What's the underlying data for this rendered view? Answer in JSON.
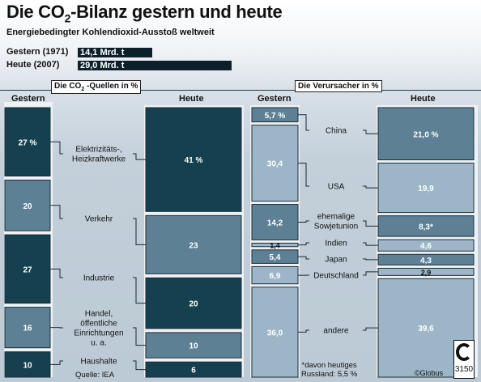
{
  "header": {
    "title_pre": "Die CO",
    "title_sub": "2",
    "title_post": "-Bilanz gestern und heute",
    "subtitle": "Energiebedingter Kohlendioxid-Ausstoß weltweit"
  },
  "totals": [
    {
      "label": "Gestern (1971)",
      "display": "14,1 Mrd. t",
      "value": 14.1
    },
    {
      "label": "Heute (2007)",
      "display": "29,0 Mrd. t",
      "value": 29.0
    }
  ],
  "colors": {
    "dark": "#14404f",
    "mid": "#5d8094",
    "light": "#9cb6c8",
    "connector": "#1a2a35",
    "panel": "#eef2f5"
  },
  "chart_data": [
    {
      "type": "bar",
      "title_pre": "Die CO",
      "title_sub": "2",
      "title_post": " -Quellen in %",
      "column_labels": [
        "Gestern",
        "Heute"
      ],
      "categories": [
        "Elektrizitäts-, Heizkraftwerke",
        "Verkehr",
        "Industrie",
        "Handel, öffentliche Einrichtungen u. a.",
        "Haushalte"
      ],
      "category_lines": [
        [
          "Elektrizitäts-,",
          "Heizkraftwerke"
        ],
        [
          "Verkehr"
        ],
        [
          "Industrie"
        ],
        [
          "Handel,",
          "öffentliche",
          "Einrichtungen",
          "u. a."
        ],
        [
          "Haushalte"
        ]
      ],
      "series": [
        {
          "name": "Gestern",
          "values": [
            27,
            20,
            27,
            16,
            10
          ],
          "labels": [
            "27 %",
            "20",
            "27",
            "16",
            "10"
          ]
        },
        {
          "name": "Heute",
          "values": [
            41,
            23,
            20,
            10,
            6
          ],
          "labels": [
            "41 %",
            "23",
            "20",
            "10",
            "6"
          ]
        }
      ]
    },
    {
      "type": "bar",
      "title": "Die Verursacher in %",
      "column_labels": [
        "Gestern",
        "Heute"
      ],
      "categories": [
        "China",
        "USA",
        "ehemalige Sowjetunion",
        "Indien",
        "Japan",
        "Deutschland",
        "andere"
      ],
      "category_lines": [
        [
          "China"
        ],
        [
          "USA"
        ],
        [
          "ehemalige",
          "Sowjetunion"
        ],
        [
          "Indien"
        ],
        [
          "Japan"
        ],
        [
          "Deutschland"
        ],
        [
          "andere"
        ]
      ],
      "series": [
        {
          "name": "Gestern",
          "values": [
            5.7,
            30.4,
            14.2,
            1.4,
            5.4,
            6.9,
            36.0
          ],
          "labels": [
            "5,7 %",
            "30,4",
            "14,2",
            "1,4",
            "5,4",
            "6,9",
            "36,0"
          ]
        },
        {
          "name": "Heute",
          "values": [
            21.0,
            19.9,
            8.3,
            4.6,
            4.3,
            2.9,
            39.6
          ],
          "labels": [
            "21,0 %",
            "19,9",
            "8,3*",
            "4,6",
            "4,3",
            "2,9",
            "39,6"
          ]
        }
      ]
    }
  ],
  "notes": {
    "source": "Quelle: IEA",
    "footnote_lines": [
      "*davon heutiges",
      "Russland: 5,5 %"
    ],
    "credit": "©Globus",
    "number": "3150"
  }
}
